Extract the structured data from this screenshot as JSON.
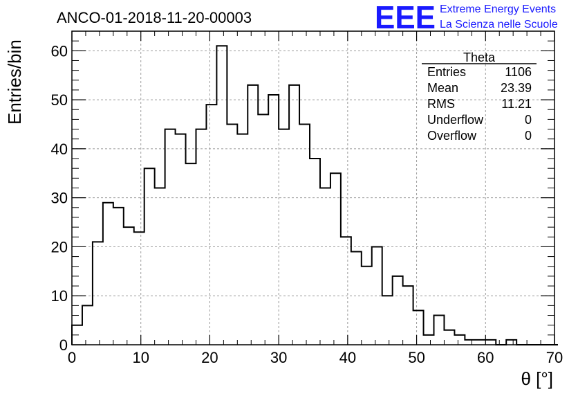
{
  "chart_data": {
    "type": "histogram",
    "title": "ANCO-01-2018-11-20-00003",
    "xlabel": "θ [°]",
    "ylabel": "Entries/bin",
    "xlim": [
      0,
      70
    ],
    "ylim": [
      0,
      64
    ],
    "xticks": [
      0,
      10,
      20,
      30,
      40,
      50,
      60,
      70
    ],
    "yticks": [
      0,
      10,
      20,
      30,
      40,
      50,
      60
    ],
    "grid": true,
    "bin_width": 1.5,
    "bin_edges_start": 0,
    "values": [
      4,
      8,
      21,
      29,
      28,
      24,
      23,
      36,
      32,
      44,
      43,
      37,
      44,
      49,
      61,
      45,
      43,
      53,
      47,
      51,
      44,
      53,
      45,
      38,
      32,
      35,
      22,
      19,
      16,
      20,
      10,
      14,
      12,
      7,
      2,
      6,
      3,
      2,
      1,
      1,
      1,
      0,
      1,
      0,
      0,
      0,
      0
    ]
  },
  "stats_box": {
    "title": "Theta",
    "rows": [
      {
        "label": "Entries",
        "value": "1106"
      },
      {
        "label": "Mean",
        "value": "23.39"
      },
      {
        "label": "RMS",
        "value": "11.21"
      },
      {
        "label": "Underflow",
        "value": "0"
      },
      {
        "label": "Overflow",
        "value": "0"
      }
    ]
  },
  "logo": {
    "mark": "EEE",
    "line1": "Extreme Energy Events",
    "line2": "La Scienza nelle Scuole",
    "color": "#1a1aff"
  }
}
